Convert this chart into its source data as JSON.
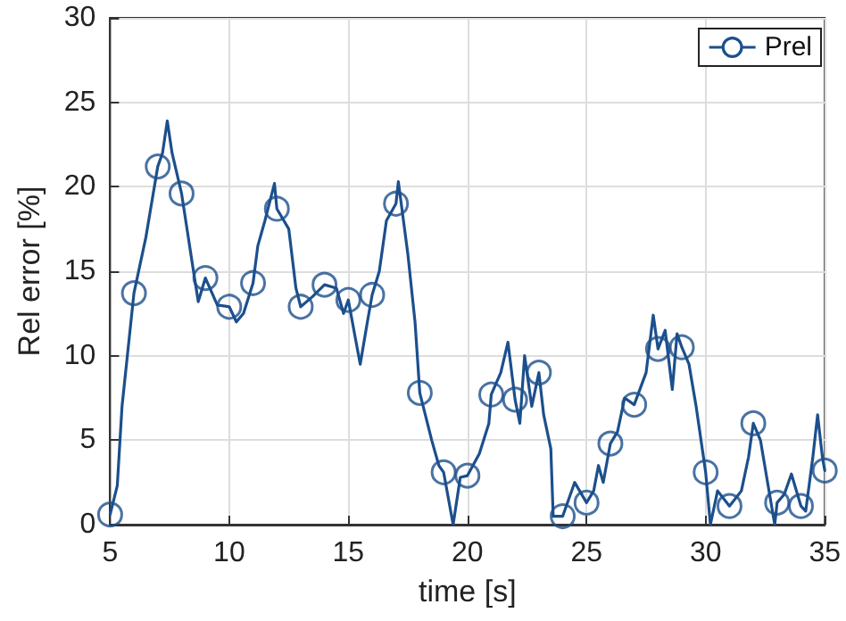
{
  "chart_data": {
    "type": "line",
    "xlabel": "time [s]",
    "ylabel": "Rel error [%]",
    "xlim": [
      5,
      35
    ],
    "xticks": [
      5,
      10,
      15,
      20,
      25,
      30,
      35
    ],
    "ylim": [
      0,
      30
    ],
    "yticks": [
      0,
      5,
      10,
      15,
      20,
      25,
      30
    ],
    "grid": true,
    "legend": "top right",
    "marker": "circle",
    "line_style": "solid",
    "series": [
      {
        "name": "Prel",
        "color": "#1c4f8c",
        "marker": "none",
        "x": [
          5,
          5.3,
          5.5,
          6,
          6.5,
          7,
          7.2,
          7.4,
          7.6,
          8,
          8.5,
          8.7,
          9,
          9.5,
          10,
          10.3,
          10.6,
          11,
          11.2,
          11.5,
          11.9,
          12,
          12.5,
          12.8,
          13,
          13.5,
          14,
          14.5,
          14.8,
          15,
          15.3,
          15.5,
          15.8,
          16,
          16.3,
          16.6,
          17,
          17.1,
          17.5,
          17.8,
          18,
          18.5,
          18.8,
          19,
          19.4,
          19.7,
          20,
          20.5,
          20.9,
          21,
          21.4,
          21.7,
          22,
          22.2,
          22.4,
          22.7,
          23,
          23.2,
          23.5,
          23.6,
          24,
          24.5,
          25,
          25.3,
          25.5,
          25.7,
          26,
          26.3,
          26.6,
          27,
          27.5,
          27.8,
          28,
          28.3,
          28.6,
          28.8,
          29,
          29.3,
          29.6,
          30,
          30.2,
          30.5,
          31,
          31.5,
          31.8,
          32,
          32.3,
          32.6,
          32.9,
          33,
          33.3,
          33.6,
          34,
          34.2,
          34.5,
          34.7,
          34.9,
          35
        ],
        "values": [
          0.6,
          2.3,
          7,
          13.7,
          17,
          21.2,
          22,
          23.9,
          22,
          19.6,
          15,
          13.2,
          14.6,
          13,
          12.9,
          12,
          12.5,
          14.3,
          16.5,
          18,
          20.2,
          18.7,
          17.5,
          14,
          12.9,
          13.5,
          14.2,
          14,
          12.5,
          13.3,
          11,
          9.5,
          12,
          13.6,
          15,
          18,
          19,
          20.3,
          16,
          12,
          7.8,
          5,
          3.5,
          3.1,
          0,
          2.8,
          2.9,
          4.2,
          6,
          7.7,
          9,
          10.8,
          7.4,
          6,
          10,
          7,
          9,
          6.5,
          4.5,
          0.5,
          0.5,
          2.5,
          1.3,
          2,
          3.5,
          2.5,
          4.8,
          5.5,
          7.5,
          7.1,
          9,
          12.4,
          10.4,
          11.5,
          8,
          11.3,
          10.5,
          9.5,
          7,
          3.1,
          0,
          2,
          1.1,
          2,
          4,
          6,
          5,
          2.5,
          0,
          1.3,
          1.8,
          3,
          1.1,
          0.8,
          4,
          6.5,
          4,
          3.2
        ]
      },
      {
        "type": "scatter",
        "color": "#1c4f8c",
        "x": [
          5,
          6,
          7,
          8,
          9,
          10,
          11,
          12,
          13,
          14,
          15,
          16,
          17,
          18,
          19,
          20,
          21,
          22,
          23,
          24,
          25,
          26,
          27,
          28,
          29,
          30,
          31,
          32,
          33,
          34,
          35
        ],
        "values": [
          0.6,
          13.7,
          21.2,
          19.6,
          14.6,
          12.9,
          14.3,
          18.7,
          12.9,
          14.2,
          13.3,
          13.6,
          19,
          7.8,
          3.1,
          2.9,
          7.7,
          7.4,
          9,
          0.5,
          1.3,
          4.8,
          7.1,
          10.4,
          10.5,
          3.1,
          1.1,
          6,
          1.3,
          1.1,
          3.2
        ]
      }
    ]
  }
}
